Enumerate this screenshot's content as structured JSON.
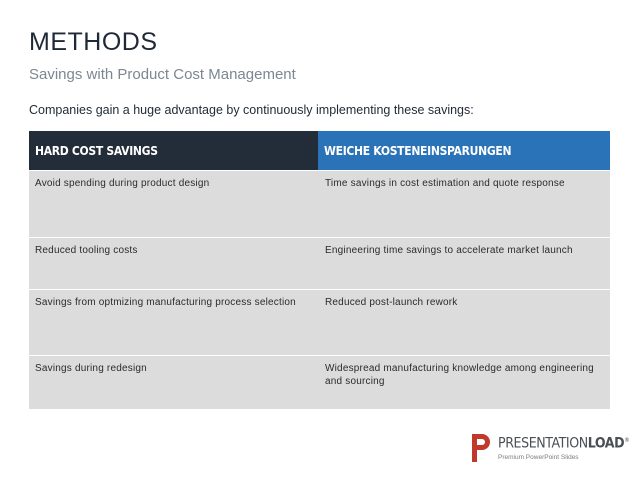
{
  "header": {
    "title": "METHODS",
    "subtitle": "Savings with Product Cost Management",
    "intro": "Companies gain a huge advantage by continuously implementing these savings:"
  },
  "table": {
    "columns": [
      "Hard Cost Savings",
      "Weiche Kosteneinsparungen"
    ],
    "rows": [
      {
        "c1": "Avoid spending during product design",
        "c2": "Time savings in cost estimation and quote response"
      },
      {
        "c1": "Reduced tooling costs",
        "c2": "Engineering time savings to accelerate market launch"
      },
      {
        "c1": "Savings from optmizing manufacturing process selection",
        "c2": "Reduced post-launch rework"
      },
      {
        "c1": "Savings during redesign",
        "c2": "Widespread manufacturing knowledge among engineering and sourcing"
      }
    ]
  },
  "logo": {
    "brand_light": "PRESENTATION",
    "brand_bold": "LOAD",
    "tagline": "Premium PowerPoint Slides",
    "accent": "#c0392b"
  }
}
